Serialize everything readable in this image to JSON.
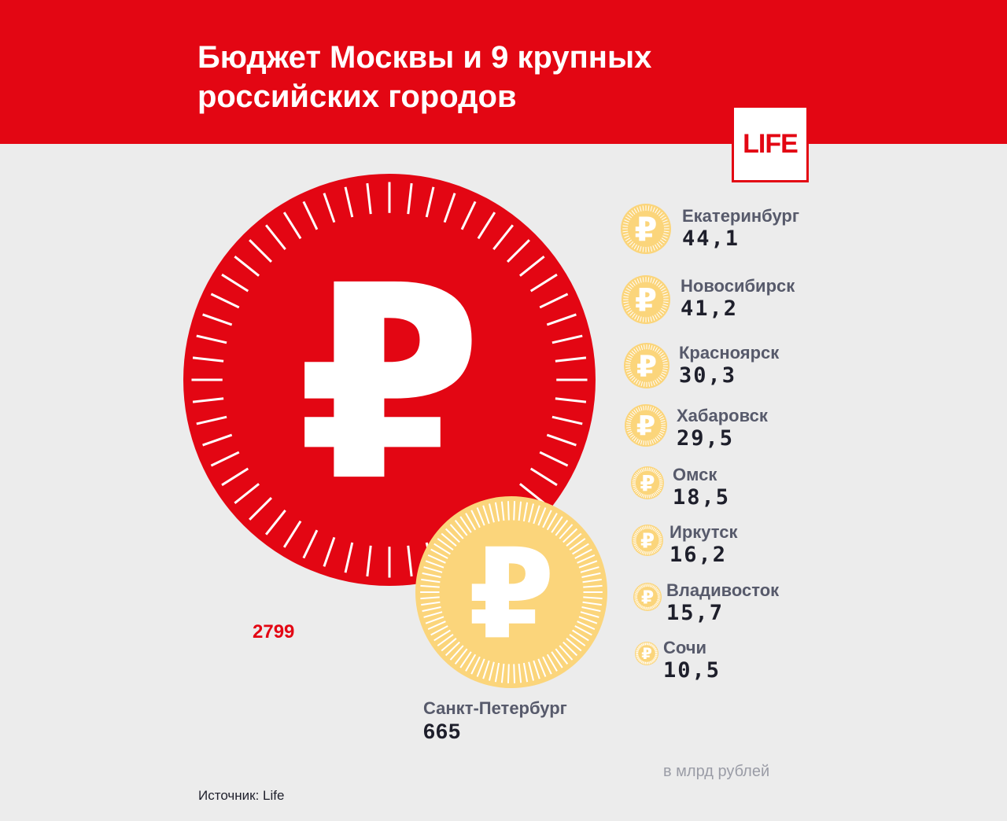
{
  "header": {
    "title": "Бюджет Москвы и 9 крупных российских городов",
    "logo": "LIFE"
  },
  "colors": {
    "red": "#e30613",
    "gold": "#fbd57b",
    "background": "#ececec"
  },
  "coin_symbol": "₽",
  "chart_data": {
    "type": "bubble",
    "title": "Бюджет Москвы и 9 крупных российских городов",
    "unit": "в млрд рублей",
    "moscow": {
      "value": "2799"
    },
    "cities": [
      {
        "name": "Санкт-Петербург",
        "value": "665"
      },
      {
        "name": "Екатеринбург",
        "value": "44,1"
      },
      {
        "name": "Новосибирск",
        "value": "41,2"
      },
      {
        "name": "Красноярск",
        "value": "30,3"
      },
      {
        "name": "Хабаровск",
        "value": "29,5"
      },
      {
        "name": "Омск",
        "value": "18,5"
      },
      {
        "name": "Иркутск",
        "value": "16,2"
      },
      {
        "name": "Владивосток",
        "value": "15,7"
      },
      {
        "name": "Сочи",
        "value": "10,5"
      }
    ]
  },
  "footer": {
    "unit": "в млрд рублей",
    "source": "Источник: Life"
  }
}
